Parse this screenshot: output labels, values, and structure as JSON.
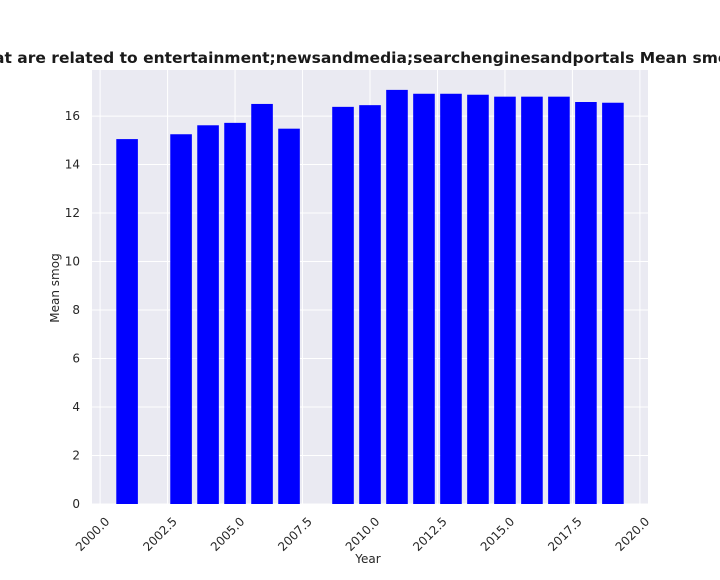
{
  "chart_data": {
    "type": "bar",
    "title": "Privacy policies of websites that are related to entertainment;newsandmedia;searchenginesandportals Mean smog in privacy policies over time",
    "xlabel": "Year",
    "ylabel": "Mean smog",
    "x": [
      2001,
      2003,
      2004,
      2005,
      2006,
      2007,
      2009,
      2010,
      2011,
      2012,
      2013,
      2014,
      2015,
      2016,
      2017,
      2018,
      2019
    ],
    "values": [
      15.05,
      15.25,
      15.62,
      15.72,
      16.5,
      15.48,
      16.38,
      16.45,
      17.08,
      16.92,
      16.92,
      16.88,
      16.8,
      16.8,
      16.8,
      16.58,
      16.55
    ],
    "xlim": [
      1999.7,
      2020.3
    ],
    "ylim": [
      0,
      17.9
    ],
    "xticks": [
      2000.0,
      2002.5,
      2005.0,
      2007.5,
      2010.0,
      2012.5,
      2015.0,
      2017.5,
      2020.0
    ],
    "xtick_labels": [
      "2000.0",
      "2002.5",
      "2005.0",
      "2007.5",
      "2010.0",
      "2012.5",
      "2015.0",
      "2017.5",
      "2020.0"
    ],
    "yticks": [
      0,
      2,
      4,
      6,
      8,
      10,
      12,
      14,
      16
    ],
    "ytick_labels": [
      "0",
      "2",
      "4",
      "6",
      "8",
      "10",
      "12",
      "14",
      "16"
    ],
    "grid": true,
    "colors": {
      "bar": "#0000ff",
      "plot_background": "#eaeaf2",
      "grid": "#ffffff"
    }
  }
}
